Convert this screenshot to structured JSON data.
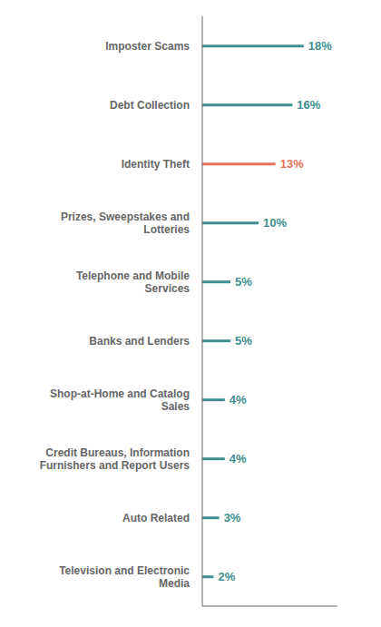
{
  "chart_data": {
    "type": "bar",
    "orientation": "horizontal",
    "categories": [
      "Television and Electronic\nMedia",
      "Auto Related",
      "Credit Bureaus, Information\nFurnishers and Report Users",
      "Shop-at-Home and Catalog\nSales",
      "Banks and Lenders",
      "Telephone and Mobile\nServices",
      "Prizes, Sweepstakes and\nLotteries",
      "Identity Theft",
      "Debt Collection",
      "Imposter Scams"
    ],
    "values": [
      2,
      3,
      4,
      4,
      5,
      5,
      10,
      13,
      16,
      18
    ],
    "value_labels": [
      "2%",
      "3%",
      "4%",
      "4%",
      "5%",
      "5%",
      "10%",
      "13%",
      "16%",
      "18%"
    ],
    "data_labels": true,
    "colors": [
      "#3d8f8f",
      "#3d8f8f",
      "#3d8f8f",
      "#3d8f8f",
      "#3d8f8f",
      "#3d8f8f",
      "#3d8f8f",
      "#e8735a",
      "#3d8f8f",
      "#3d8f8f"
    ],
    "xlim": [
      0,
      24
    ],
    "tick_labels": "y",
    "grid": false
  }
}
